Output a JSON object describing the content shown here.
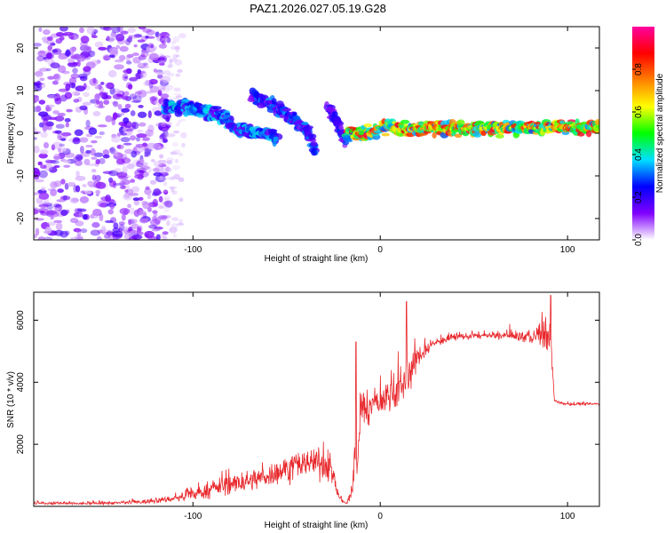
{
  "figure_title": "PAZ1.2026.027.05.19.G28",
  "chart_data": [
    {
      "type": "heatmap",
      "title": "PAZ1.2026.027.05.19.G28",
      "xlabel": "Height of straight line (km)",
      "ylabel": "Frequency (Hz)",
      "xlim": [
        -185,
        117
      ],
      "ylim": [
        -25,
        25
      ],
      "xticks": [
        -100,
        0,
        100
      ],
      "xtick_labels": [
        "-100",
        "0",
        "100"
      ],
      "yticks": [
        -20,
        -10,
        0,
        10,
        20
      ],
      "ytick_labels": [
        "-20",
        "-10",
        "0",
        "10",
        "20"
      ],
      "colorbar": {
        "label": "Normalized spectral amplitude",
        "range": [
          0,
          1
        ],
        "ticks": [
          0.0,
          0.2,
          0.4,
          0.6,
          0.8
        ],
        "tick_labels": [
          "0.0",
          "0.2",
          "0.4",
          "0.6",
          "0.8"
        ],
        "colors": [
          "#ffffff",
          "#8000ff",
          "#0000ff",
          "#00e0ff",
          "#00ff00",
          "#ffff00",
          "#ff8000",
          "#ff0000",
          "#ff00a0"
        ]
      },
      "features": [
        {
          "name": "noise region",
          "x_range": [
            -185,
            -113
          ],
          "freq_range": [
            -25,
            25
          ],
          "amplitude": 0.1
        },
        {
          "name": "track A",
          "points": [
            [
              -115,
              6
            ],
            [
              -100,
              6
            ],
            [
              -85,
              4
            ],
            [
              -75,
              1
            ],
            [
              -65,
              0
            ],
            [
              -55,
              -1
            ]
          ],
          "amplitude": 0.35
        },
        {
          "name": "track B",
          "points": [
            [
              -68,
              9
            ],
            [
              -55,
              6
            ],
            [
              -45,
              3
            ],
            [
              -38,
              0
            ],
            [
              -34,
              -5
            ]
          ],
          "amplitude": 0.3
        },
        {
          "name": "track C",
          "points": [
            [
              -28,
              6
            ],
            [
              -22,
              2
            ],
            [
              -18,
              -3
            ]
          ],
          "amplitude": 0.25
        },
        {
          "name": "carrier",
          "points": [
            [
              -18,
              0
            ],
            [
              -5,
              0
            ],
            [
              5,
              2
            ],
            [
              10,
              1
            ],
            [
              20,
              1
            ],
            [
              117,
              1.5
            ]
          ],
          "amplitude": 0.8
        }
      ]
    },
    {
      "type": "line",
      "xlabel": "Height of straight line (km)",
      "ylabel": "SNR (10 * v/v)",
      "xlim": [
        -185,
        117
      ],
      "ylim": [
        0,
        6900
      ],
      "xticks": [
        -100,
        0,
        100
      ],
      "xtick_labels": [
        "-100",
        "0",
        "100"
      ],
      "yticks": [
        2000,
        4000,
        6000
      ],
      "ytick_labels": [
        "2000",
        "4000",
        "6000"
      ],
      "line_color": "#e8282c",
      "series": [
        {
          "name": "SNR",
          "x": [
            -185,
            -160,
            -140,
            -125,
            -110,
            -95,
            -85,
            -75,
            -65,
            -55,
            -45,
            -35,
            -27,
            -22,
            -18,
            -15,
            -12,
            -10,
            -8,
            -5,
            0,
            5,
            8,
            12,
            15,
            20,
            25,
            30,
            40,
            50,
            60,
            70,
            80,
            85,
            88,
            91,
            93,
            95,
            100,
            117
          ],
          "mean": [
            100,
            90,
            110,
            150,
            250,
            450,
            650,
            750,
            900,
            1100,
            1300,
            1450,
            1300,
            300,
            80,
            500,
            1800,
            3200,
            3100,
            3200,
            3400,
            3600,
            3700,
            3900,
            4200,
            4800,
            5100,
            5300,
            5450,
            5500,
            5500,
            5500,
            5450,
            5500,
            5600,
            5400,
            3400,
            3350,
            3300,
            3300
          ],
          "noise": [
            70,
            60,
            70,
            100,
            150,
            300,
            400,
            450,
            500,
            550,
            600,
            650,
            700,
            150,
            50,
            400,
            1200,
            900,
            800,
            700,
            700,
            800,
            900,
            900,
            800,
            500,
            300,
            200,
            150,
            150,
            150,
            200,
            300,
            500,
            900,
            500,
            80,
            60,
            60,
            60
          ],
          "annotated_peaks": [
            [
              -13,
              5300
            ],
            [
              14,
              6600
            ],
            [
              91,
              6800
            ]
          ]
        }
      ]
    }
  ]
}
